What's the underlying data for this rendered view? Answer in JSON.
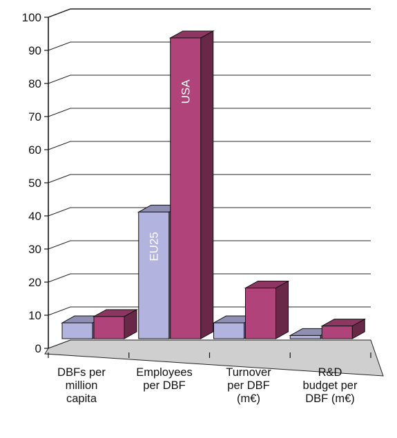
{
  "chart_data": {
    "type": "bar",
    "categories": [
      [
        "DBFs per",
        "million",
        "capita"
      ],
      [
        "Employees",
        "per DBF"
      ],
      [
        "Turnover",
        "per DBF",
        "(m€)"
      ],
      [
        "R&D",
        "budget per",
        "DBF (m€)"
      ]
    ],
    "series": [
      {
        "name": "EU25",
        "values": [
          5,
          40,
          5,
          1
        ],
        "color": "#b3b3e0"
      },
      {
        "name": "USA",
        "values": [
          7,
          95,
          16,
          4
        ],
        "color": "#b0437a"
      }
    ],
    "ylim": [
      0,
      100
    ],
    "yticks": [
      0,
      10,
      20,
      30,
      40,
      50,
      60,
      70,
      80,
      90,
      100
    ],
    "grid": true,
    "style": "3d-clustered-bar",
    "legend": "labels on bars"
  }
}
